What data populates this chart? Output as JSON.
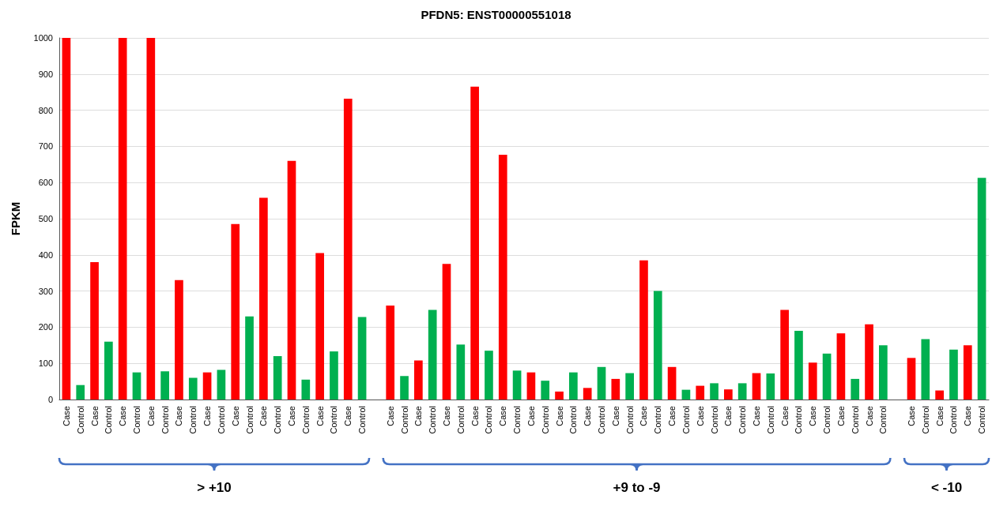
{
  "chart_data": {
    "type": "bar",
    "title": "PFDN5: ENST00000551018",
    "ylabel": "FPKM",
    "categories": [
      "Case",
      "Control",
      "Case",
      "Control",
      "Case",
      "Control",
      "Case",
      "Control",
      "Case",
      "Control",
      "Case",
      "Control",
      "Case",
      "Control",
      "Case",
      "Control",
      "Case",
      "Control",
      "Case",
      "Control",
      "Case",
      "Control",
      null,
      "Case",
      "Control",
      "Case",
      "Control",
      "Case",
      "Control",
      "Case",
      "Control",
      "Case",
      "Control",
      "Case",
      "Control",
      "Case",
      "Control",
      "Case",
      "Control",
      "Case",
      "Control",
      "Case",
      "Control",
      "Case",
      "Control",
      "Case",
      "Control",
      "Case",
      "Control",
      "Case",
      "Control",
      "Case",
      "Control",
      "Case",
      "Control",
      "Case",
      "Control",
      "Case",
      "Control",
      null,
      "Case",
      "Control",
      "Case",
      "Control",
      "Case",
      "Control"
    ],
    "values": [
      1000,
      40,
      380,
      160,
      1000,
      75,
      1000,
      78,
      330,
      60,
      75,
      82,
      485,
      230,
      558,
      120,
      660,
      55,
      405,
      133,
      832,
      228,
      null,
      260,
      65,
      108,
      248,
      375,
      152,
      865,
      135,
      677,
      80,
      75,
      52,
      22,
      75,
      32,
      90,
      57,
      73,
      385,
      300,
      90,
      27,
      38,
      45,
      28,
      45,
      73,
      72,
      248,
      190,
      102,
      127,
      183,
      57,
      208,
      150,
      null,
      115,
      167,
      25,
      138,
      150,
      613
    ],
    "colors": [
      "#ff0000",
      "#00b050",
      "#ff0000",
      "#00b050",
      "#ff0000",
      "#00b050",
      "#ff0000",
      "#00b050",
      "#ff0000",
      "#00b050",
      "#ff0000",
      "#00b050",
      "#ff0000",
      "#00b050",
      "#ff0000",
      "#00b050",
      "#ff0000",
      "#00b050",
      "#ff0000",
      "#00b050",
      "#ff0000",
      "#00b050",
      null,
      "#ff0000",
      "#00b050",
      "#ff0000",
      "#00b050",
      "#ff0000",
      "#00b050",
      "#ff0000",
      "#00b050",
      "#ff0000",
      "#00b050",
      "#ff0000",
      "#00b050",
      "#ff0000",
      "#00b050",
      "#ff0000",
      "#00b050",
      "#ff0000",
      "#00b050",
      "#ff0000",
      "#00b050",
      "#ff0000",
      "#00b050",
      "#ff0000",
      "#00b050",
      "#ff0000",
      "#00b050",
      "#ff0000",
      "#00b050",
      "#ff0000",
      "#00b050",
      "#ff0000",
      "#00b050",
      "#ff0000",
      "#00b050",
      "#ff0000",
      "#00b050",
      null,
      "#ff0000",
      "#00b050",
      "#ff0000",
      "#00b050",
      "#ff0000",
      "#00b050"
    ],
    "ylim": [
      0,
      1000
    ],
    "yticks": [
      0,
      100,
      200,
      300,
      400,
      500,
      600,
      700,
      800,
      900,
      1000
    ],
    "grid": "y",
    "annotations": [
      "> +10",
      "+9 to -9",
      "< -10"
    ]
  }
}
